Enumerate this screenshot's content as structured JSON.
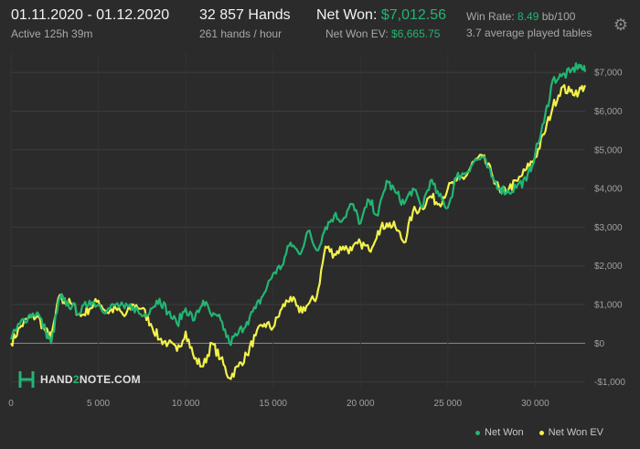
{
  "header": {
    "date_range": "01.11.2020 - 01.12.2020",
    "active": "Active 125h 39m",
    "hands": "32 857 Hands",
    "hands_per_hour": "261 hands / hour",
    "net_won_label": "Net Won:",
    "net_won_value": "$7,012.56",
    "net_won_ev_label": "Net Won  EV:",
    "net_won_ev_value": "$6,665.75",
    "win_rate_label": "Win Rate:",
    "win_rate_value": "8.49",
    "win_rate_unit": "bb/100",
    "tables": "3.7 average played tables"
  },
  "logo": {
    "pre": "HAND",
    "mid": "2",
    "post": "NOTE.COM"
  },
  "colors": {
    "net_won": "#22b573",
    "net_won_ev": "#f2f24a",
    "background": "#2b2b2b",
    "grid": "#3d3d3d"
  },
  "icons": {
    "settings": "gear-icon",
    "logo": "hand2note-logo-icon"
  },
  "chart_data": {
    "type": "line",
    "x_ticks": [
      0,
      5000,
      10000,
      15000,
      20000,
      25000,
      30000
    ],
    "x_tick_labels": [
      "0",
      "5 000",
      "10 000",
      "15 000",
      "20 000",
      "25 000",
      "30 000"
    ],
    "xlim": [
      0,
      32857
    ],
    "y_ticks": [
      -1000,
      0,
      1000,
      2000,
      3000,
      4000,
      5000,
      6000,
      7000
    ],
    "y_tick_labels": [
      "-$1,000",
      "$0",
      "$1,000",
      "$2,000",
      "$3,000",
      "$4,000",
      "$5,000",
      "$6,000",
      "$7,000"
    ],
    "ylim": [
      -1150,
      7500
    ],
    "grid": true,
    "legend_position": "bottom-right",
    "series": [
      {
        "name": "Net Won",
        "color": "#22b573",
        "x": [
          0,
          500,
          1000,
          1500,
          2000,
          2300,
          2800,
          3000,
          3500,
          4000,
          4500,
          5000,
          5500,
          6000,
          6500,
          7000,
          7500,
          8000,
          8500,
          9000,
          9500,
          10000,
          10500,
          11000,
          11500,
          12000,
          12500,
          13000,
          13500,
          14000,
          14500,
          15000,
          15500,
          16000,
          16500,
          17000,
          17500,
          18000,
          18500,
          19000,
          19500,
          20000,
          20500,
          21000,
          21500,
          22000,
          22500,
          23000,
          23500,
          24000,
          24500,
          25000,
          25500,
          26000,
          26500,
          27000,
          27500,
          28000,
          28500,
          29000,
          29500,
          30000,
          30500,
          31000,
          31500,
          32000,
          32500,
          32857
        ],
        "y": [
          100,
          500,
          700,
          800,
          300,
          0,
          1200,
          1100,
          950,
          800,
          1100,
          1000,
          850,
          1000,
          900,
          950,
          700,
          900,
          1150,
          800,
          500,
          900,
          600,
          1100,
          700,
          600,
          0,
          250,
          550,
          900,
          1300,
          1800,
          2000,
          2600,
          2300,
          2900,
          2400,
          3000,
          3300,
          3200,
          3600,
          3100,
          3700,
          3300,
          4200,
          3900,
          3600,
          4000,
          3500,
          4200,
          3800,
          3500,
          4300,
          4400,
          4700,
          4800,
          4300,
          4000,
          3900,
          4100,
          4200,
          4900,
          5700,
          6800,
          6900,
          7000,
          7200,
          7012.56
        ]
      },
      {
        "name": "Net Won  EV",
        "color": "#f2f24a",
        "x": [
          0,
          500,
          1000,
          1500,
          2000,
          2300,
          2800,
          3000,
          3500,
          4000,
          4500,
          5000,
          5500,
          6000,
          6500,
          7000,
          7500,
          8000,
          8500,
          9000,
          9500,
          10000,
          10500,
          11000,
          11500,
          12000,
          12500,
          13000,
          13500,
          14000,
          14500,
          15000,
          15500,
          16000,
          16500,
          17000,
          17500,
          18000,
          18500,
          19000,
          19500,
          20000,
          20500,
          21000,
          21500,
          22000,
          22500,
          23000,
          23500,
          24000,
          24500,
          25000,
          25500,
          26000,
          26500,
          27000,
          27500,
          28000,
          28500,
          29000,
          29500,
          30000,
          30500,
          31000,
          31500,
          32000,
          32500,
          32857
        ],
        "y": [
          0,
          400,
          650,
          700,
          300,
          150,
          1250,
          1100,
          1000,
          700,
          900,
          1100,
          800,
          900,
          700,
          1000,
          900,
          500,
          100,
          0,
          -200,
          300,
          -400,
          -600,
          0,
          -400,
          -900,
          -600,
          -300,
          200,
          500,
          400,
          900,
          1200,
          800,
          1000,
          1200,
          2500,
          2300,
          2500,
          2400,
          2600,
          2400,
          2900,
          3100,
          3000,
          2600,
          3400,
          3500,
          3800,
          3600,
          4000,
          4200,
          4300,
          4700,
          4800,
          4400,
          3900,
          4000,
          4200,
          4500,
          4800,
          5400,
          6100,
          6600,
          6500,
          6500,
          6665.75
        ]
      }
    ]
  }
}
